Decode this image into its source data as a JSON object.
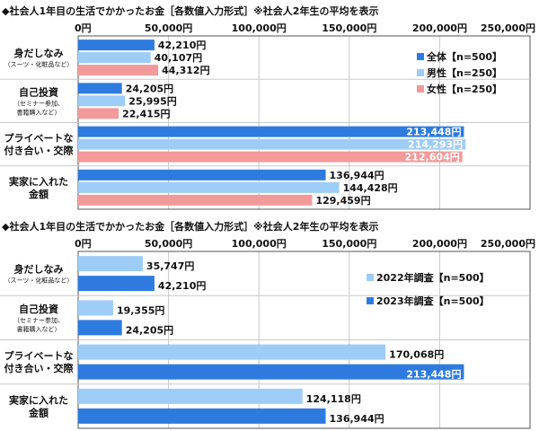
{
  "colors": {
    "overall": "#2E7BE0",
    "male": "#9DCDF7",
    "female": "#F29A9A",
    "y2022": "#9DCDF7",
    "y2023": "#2E7BE0",
    "grid": "#c8c8c8",
    "frame": "#555555"
  },
  "chart_data": [
    {
      "type": "bar",
      "orientation": "horizontal",
      "title": "◆社会人1年目の生活でかかったお金［各数値入力形式］※社会人2年生の平均を表示",
      "categories": [
        {
          "main": "身だしなみ",
          "sub": [
            "（スーツ・化粧品など）"
          ]
        },
        {
          "main": "自己投資",
          "sub": [
            "（セミナー参加、",
            "書籍購入など）"
          ]
        },
        {
          "main": "プライベートな付き合い・交際",
          "lines": [
            "プライベートな",
            "付き合い・交際"
          ],
          "sub": []
        },
        {
          "main": "実家に入れた金額",
          "lines": [
            "実家に入れた",
            "金額"
          ],
          "sub": []
        }
      ],
      "x_ticks": [
        "0円",
        "50,000円",
        "100,000円",
        "150,000円",
        "200,000円",
        "250,000円"
      ],
      "xlim": [
        0,
        250000
      ],
      "grid": true,
      "legend_position": "top-right",
      "series": [
        {
          "name": "全体【n=500】",
          "values": [
            42210,
            24205,
            213448,
            136944
          ],
          "labels": [
            "42,210円",
            "24,205円",
            "213,448円",
            "136,944円"
          ]
        },
        {
          "name": "男性【n=250】",
          "values": [
            40107,
            25995,
            214293,
            144428
          ],
          "labels": [
            "40,107円",
            "25,995円",
            "214,293円",
            "144,428円"
          ]
        },
        {
          "name": "女性【n=250】",
          "values": [
            44312,
            22415,
            212604,
            129459
          ],
          "labels": [
            "44,312円",
            "22,415円",
            "212,604円",
            "129,459円"
          ]
        }
      ]
    },
    {
      "type": "bar",
      "orientation": "horizontal",
      "title": "◆社会人1年目の生活でかかったお金［各数値入力形式］※社会人2年生の平均を表示",
      "categories": [
        {
          "main": "身だしなみ",
          "sub": [
            "（スーツ・化粧品など）"
          ]
        },
        {
          "main": "自己投資",
          "sub": [
            "（セミナー参加、",
            "書籍購入など）"
          ]
        },
        {
          "main": "プライベートな付き合い・交際",
          "lines": [
            "プライベートな",
            "付き合い・交際"
          ],
          "sub": []
        },
        {
          "main": "実家に入れた金額",
          "lines": [
            "実家に入れた",
            "金額"
          ],
          "sub": []
        }
      ],
      "x_ticks": [
        "0円",
        "50,000円",
        "100,000円",
        "150,000円",
        "200,000円",
        "250,000円"
      ],
      "xlim": [
        0,
        250000
      ],
      "grid": true,
      "legend_position": "top-right",
      "series": [
        {
          "name": "2022年調査【n=500】",
          "values": [
            35747,
            19355,
            170068,
            124118
          ],
          "labels": [
            "35,747円",
            "19,355円",
            "170,068円",
            "124,118円"
          ]
        },
        {
          "name": "2023年調査【n=500】",
          "values": [
            42210,
            24205,
            213448,
            136944
          ],
          "labels": [
            "42,210円",
            "24,205円",
            "213,448円",
            "136,944円"
          ]
        }
      ]
    }
  ]
}
